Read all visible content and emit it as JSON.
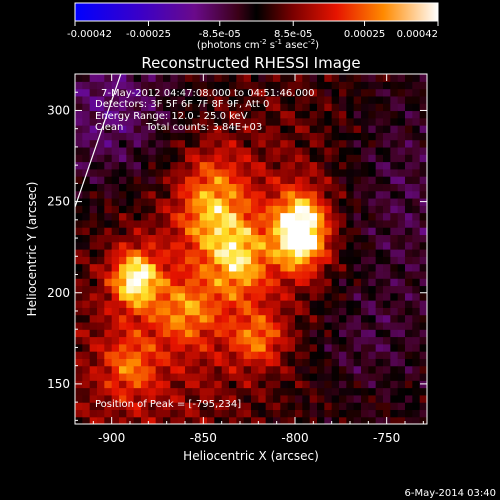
{
  "chart_data": {
    "type": "heatmap",
    "title": "Reconstructed RHESSI Image",
    "xlabel": "Heliocentric X (arcsec)",
    "ylabel": "Heliocentric Y (arcsec)",
    "xlim": [
      -920,
      -728
    ],
    "ylim": [
      128,
      320
    ],
    "x_ticks": [
      -900,
      -850,
      -800,
      -750
    ],
    "y_ticks": [
      150,
      200,
      250,
      300
    ],
    "colorbar": {
      "min": -0.00042,
      "max": 0.00042,
      "ticks": [
        -0.00042,
        -0.00025,
        -8.5e-05,
        8.5e-05,
        0.00025,
        0.00042
      ],
      "tick_labels": [
        "-0.00042",
        "-0.00025",
        "-8.5e-05",
        "8.5e-05",
        "0.00025",
        "0.00042"
      ],
      "unit_prefix": "(photons cm",
      "unit_exp1": "-2",
      "unit_mid": " s",
      "unit_exp2": "-1",
      "unit_mid2": " asec",
      "unit_exp3": "-2",
      "unit_suffix": ")"
    },
    "peak": {
      "x": -795,
      "y": 234
    },
    "sources": [
      {
        "x": -797,
        "y": 234,
        "sx": 10,
        "sy": 14,
        "amp": 1.0
      },
      {
        "x": -887,
        "y": 208,
        "sx": 9,
        "sy": 11,
        "amp": 0.75
      },
      {
        "x": -845,
        "y": 248,
        "sx": 13,
        "sy": 20,
        "amp": 0.5
      },
      {
        "x": -830,
        "y": 218,
        "sx": 11,
        "sy": 15,
        "amp": 0.45
      },
      {
        "x": -820,
        "y": 175,
        "sx": 10,
        "sy": 10,
        "amp": 0.4
      },
      {
        "x": -890,
        "y": 160,
        "sx": 10,
        "sy": 12,
        "amp": 0.35
      },
      {
        "x": -860,
        "y": 190,
        "sx": 12,
        "sy": 12,
        "amp": 0.35
      }
    ],
    "limb": [
      [
        -920,
        247
      ],
      [
        -895,
        320
      ]
    ]
  },
  "annotations": {
    "time_range": "7-May-2012 04:47:08.000 to 04:51:46.000",
    "detectors": "Detectors: 3F 5F 6F 7F 8F 9F, Att 0",
    "energy": "Energy Range: 12.0 - 25.0 keV",
    "clean_label": "Clean",
    "counts": "Total counts: 3.84E+03",
    "peak_text": "Position of Peak = [-795,234]"
  },
  "footer": {
    "timestamp": "6-May-2014 03:40"
  }
}
